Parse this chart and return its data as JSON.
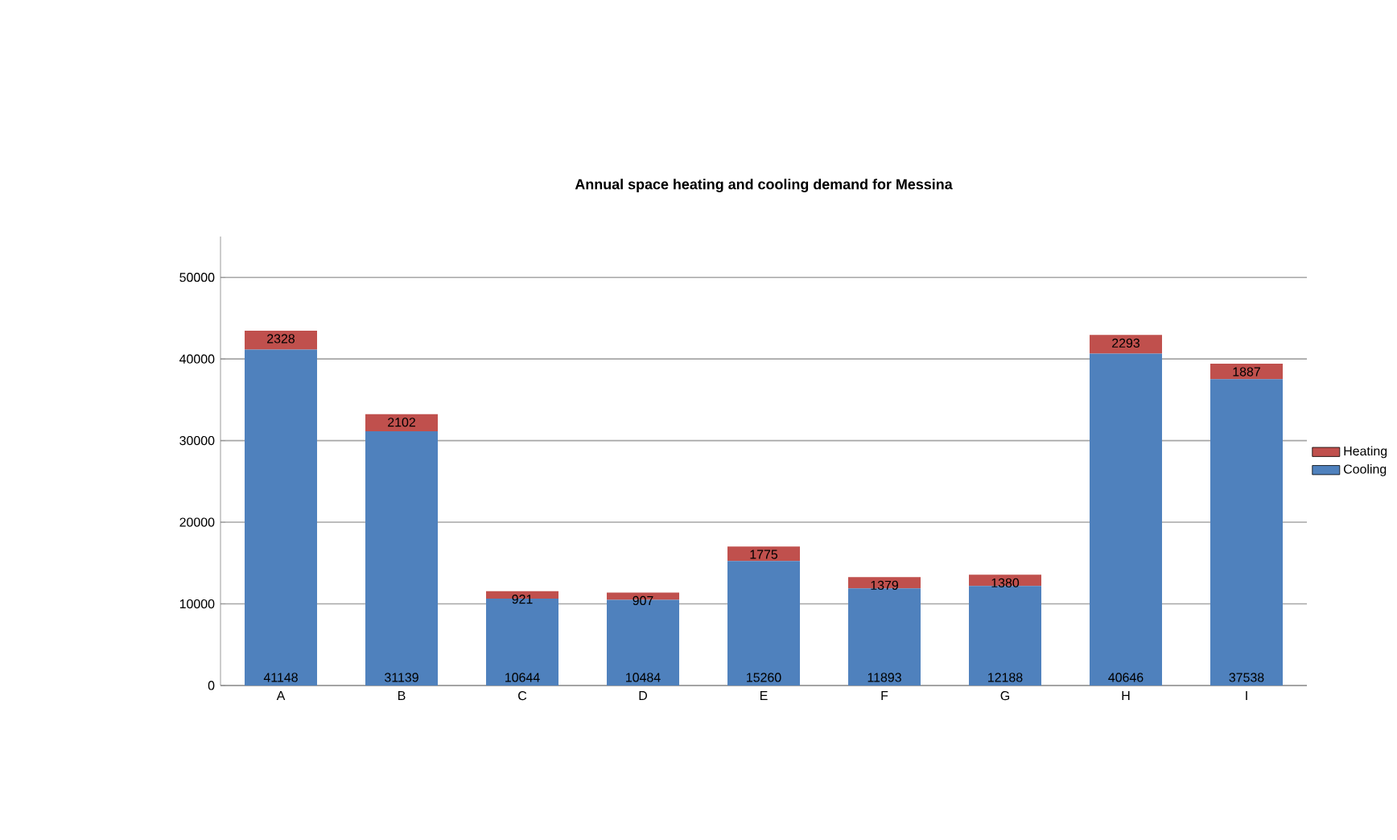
{
  "chart_data": {
    "type": "bar",
    "stacked": true,
    "title": "Annual space heating and cooling demand for Messina",
    "categories": [
      "A",
      "B",
      "C",
      "D",
      "E",
      "F",
      "G",
      "H",
      "I"
    ],
    "series": [
      {
        "name": "Cooling",
        "color": "#4f81bd",
        "values": [
          41148,
          31139,
          10644,
          10484,
          15260,
          11893,
          12188,
          40646,
          37538
        ]
      },
      {
        "name": "Heating",
        "color": "#c0504d",
        "values": [
          2328,
          2102,
          921,
          907,
          1775,
          1379,
          1380,
          2293,
          1887
        ]
      }
    ],
    "ylim": [
      0,
      55000
    ],
    "yticks": [
      0,
      10000,
      20000,
      30000,
      40000,
      50000
    ],
    "grid": "y",
    "legend": "right",
    "data_labels": true
  }
}
